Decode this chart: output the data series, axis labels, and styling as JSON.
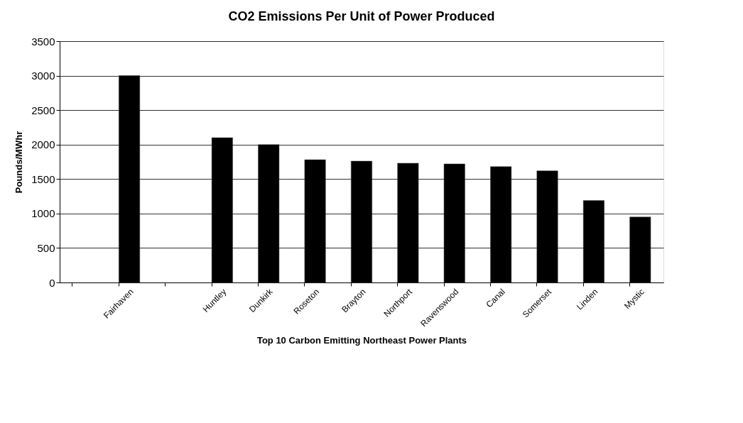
{
  "chart_data": {
    "type": "bar",
    "title": "CO2 Emissions Per Unit of Power Produced",
    "xlabel": "Top 10 Carbon Emitting Northeast Power Plants",
    "ylabel": "Pounds/MWhr",
    "categories": [
      null,
      "Fairhaven",
      null,
      "Huntley",
      "Dunkirk",
      "Roseton",
      "Brayton",
      "Northport",
      "Ravenswood",
      "Canal",
      "Somerset",
      "Linden",
      "Mystic"
    ],
    "values": [
      null,
      3000,
      null,
      2100,
      2000,
      1780,
      1760,
      1730,
      1720,
      1680,
      1620,
      1190,
      950
    ],
    "color": "#000000",
    "ylim": [
      0,
      3500
    ],
    "yticks": [
      0,
      500,
      1000,
      1500,
      2000,
      2500,
      3000,
      3500
    ],
    "grid": "y"
  }
}
